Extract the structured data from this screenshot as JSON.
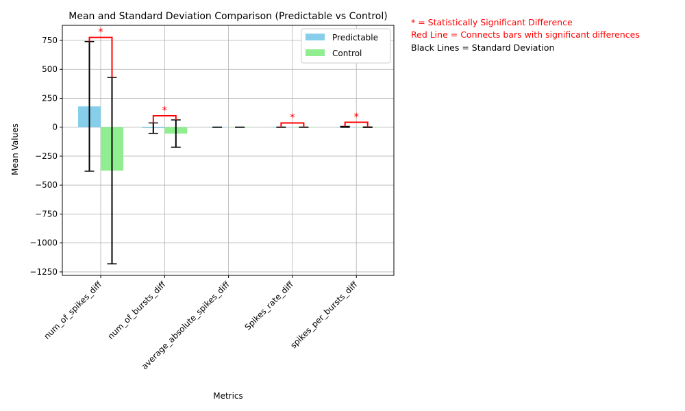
{
  "chart_data": {
    "type": "bar",
    "title": "Mean and Standard Deviation Comparison (Predictable vs Control)",
    "xlabel": "Metrics",
    "ylabel": "Mean Values",
    "categories": [
      "num_of_spikes_diff",
      "num_of_bursts_diff",
      "average_absolute_spikes_diff",
      "Spikes_rate_diff",
      "spikes_per_bursts_diff"
    ],
    "series": [
      {
        "name": "Predictable",
        "color": "#87ceeb",
        "values": [
          180,
          -8,
          0,
          0,
          3
        ],
        "std": [
          560,
          45,
          1,
          1,
          4
        ]
      },
      {
        "name": "Control",
        "color": "#90ee90",
        "values": [
          -375,
          -55,
          0,
          0,
          0
        ],
        "std": [
          805,
          118,
          1,
          1,
          2
        ]
      }
    ],
    "significant": [
      true,
      true,
      false,
      true,
      true
    ],
    "significance_marker": "*",
    "ylim": [
      -1280,
      880
    ],
    "yticks": [
      -1250,
      -1000,
      -750,
      -500,
      -250,
      0,
      250,
      500,
      750
    ],
    "grid": true,
    "legend_position": "top-right"
  },
  "notes": [
    {
      "text": "* = Statistically Significant Difference",
      "color": "#ff0000"
    },
    {
      "text": "Red Line = Connects bars with significant differences",
      "color": "#ff0000"
    },
    {
      "text": "Black Lines = Standard Deviation",
      "color": "#000000"
    }
  ]
}
